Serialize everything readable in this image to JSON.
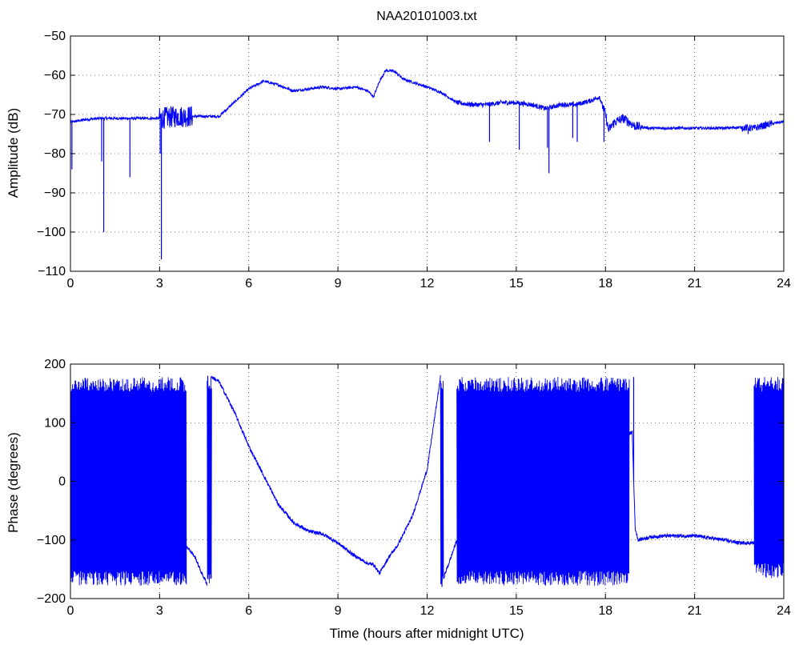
{
  "chart_data": [
    {
      "type": "line",
      "title": "NAA20101003.txt",
      "xlabel": "",
      "ylabel": "Amplitude (dB)",
      "xlim": [
        0,
        24
      ],
      "ylim": [
        -110,
        -50
      ],
      "xticks": [
        0,
        3,
        6,
        9,
        12,
        15,
        18,
        21,
        24
      ],
      "xtick_labels": [
        "0",
        "3",
        "6",
        "9",
        "12",
        "15",
        "18",
        "21",
        "24"
      ],
      "yticks": [
        -50,
        -60,
        -70,
        -80,
        -90,
        -100,
        -110
      ],
      "ytick_labels": [
        "−50",
        "−60",
        "−70",
        "−80",
        "−90",
        "−100",
        "−110"
      ],
      "grid": true,
      "line_color": "#0000ff",
      "series": [
        {
          "baseline": [
            [
              0,
              -72
            ],
            [
              0.5,
              -71.3
            ],
            [
              1,
              -71
            ],
            [
              2,
              -71
            ],
            [
              3,
              -71
            ],
            [
              3.6,
              -70.5
            ],
            [
              4,
              -70.5
            ],
            [
              4.5,
              -70.5
            ],
            [
              5,
              -70.5
            ],
            [
              5.5,
              -67
            ],
            [
              6,
              -63.5
            ],
            [
              6.5,
              -61.5
            ],
            [
              7,
              -62.5
            ],
            [
              7.5,
              -64
            ],
            [
              8,
              -63.5
            ],
            [
              8.5,
              -63
            ],
            [
              9,
              -63.5
            ],
            [
              9.6,
              -63
            ],
            [
              10,
              -64
            ],
            [
              10.2,
              -65.5
            ],
            [
              10.4,
              -61.5
            ],
            [
              10.6,
              -58.8
            ],
            [
              10.9,
              -59
            ],
            [
              11.2,
              -61
            ],
            [
              11.6,
              -62
            ],
            [
              12,
              -63
            ],
            [
              12.5,
              -64.5
            ],
            [
              13,
              -67
            ],
            [
              13.5,
              -67.5
            ],
            [
              14,
              -67.5
            ],
            [
              14.5,
              -67
            ],
            [
              15,
              -67
            ],
            [
              15.5,
              -67.5
            ],
            [
              16,
              -68.5
            ],
            [
              16.5,
              -67.5
            ],
            [
              17,
              -67.5
            ],
            [
              17.5,
              -66.5
            ],
            [
              17.8,
              -65.5
            ],
            [
              18,
              -70
            ],
            [
              18.1,
              -74
            ],
            [
              18.3,
              -72
            ],
            [
              18.6,
              -71
            ],
            [
              19,
              -73
            ],
            [
              19.5,
              -73.5
            ],
            [
              20,
              -73.5
            ],
            [
              21,
              -73.5
            ],
            [
              22,
              -73.5
            ],
            [
              22.5,
              -73.3
            ],
            [
              23,
              -73.5
            ],
            [
              23.5,
              -72.5
            ],
            [
              24,
              -71.8
            ]
          ],
          "noise_segments": [
            {
              "from": 3.0,
              "to": 4.1,
              "amplitude": 2.8
            },
            {
              "from": 17.9,
              "to": 19.2,
              "amplitude": 1.2
            },
            {
              "from": 22.6,
              "to": 23.6,
              "amplitude": 0.9
            },
            {
              "from": 13.0,
              "to": 17.9,
              "amplitude": 0.6
            }
          ],
          "spikes": [
            {
              "x": 0.05,
              "y": -84
            },
            {
              "x": 1.05,
              "y": -82
            },
            {
              "x": 1.12,
              "y": -100
            },
            {
              "x": 2.0,
              "y": -86
            },
            {
              "x": 3.02,
              "y": -80
            },
            {
              "x": 3.06,
              "y": -107
            },
            {
              "x": 14.1,
              "y": -77
            },
            {
              "x": 15.1,
              "y": -79
            },
            {
              "x": 16.05,
              "y": -78.5
            },
            {
              "x": 16.1,
              "y": -85
            },
            {
              "x": 16.9,
              "y": -76
            },
            {
              "x": 17.05,
              "y": -77
            },
            {
              "x": 17.95,
              "y": -77
            },
            {
              "x": 22.8,
              "y": -75
            }
          ]
        }
      ]
    },
    {
      "type": "line",
      "title": "",
      "xlabel": "Time (hours after midnight UTC)",
      "ylabel": "Phase (degrees)",
      "xlim": [
        0,
        24
      ],
      "ylim": [
        -200,
        200
      ],
      "xticks": [
        0,
        3,
        6,
        9,
        12,
        15,
        18,
        21,
        24
      ],
      "xtick_labels": [
        "0",
        "3",
        "6",
        "9",
        "12",
        "15",
        "18",
        "21",
        "24"
      ],
      "yticks": [
        200,
        100,
        0,
        -100,
        -200
      ],
      "ytick_labels": [
        "200",
        "100",
        "0",
        "−100",
        "−200"
      ],
      "grid": true,
      "line_color": "#0000ff",
      "series": [
        {
          "wrap_segments": [
            {
              "from": 0.0,
              "to": 3.9,
              "low": -178,
              "high": 178
            },
            {
              "from": 4.6,
              "to": 4.75,
              "low": -180,
              "high": 180
            },
            {
              "from": 12.45,
              "to": 12.55,
              "low": -180,
              "high": 180
            },
            {
              "from": 13.0,
              "to": 18.8,
              "low": -178,
              "high": 178
            },
            {
              "from": 23.0,
              "to": 24.0,
              "low": -165,
              "high": 178
            }
          ],
          "smooth_segments": [
            [
              [
                3.9,
                -110
              ],
              [
                4.2,
                -130
              ],
              [
                4.4,
                -155
              ],
              [
                4.6,
                -175
              ]
            ],
            [
              [
                4.75,
                178
              ],
              [
                5.0,
                170
              ],
              [
                5.5,
                120
              ],
              [
                6.0,
                60
              ],
              [
                6.5,
                10
              ],
              [
                7.0,
                -40
              ],
              [
                7.5,
                -70
              ],
              [
                8.0,
                -85
              ],
              [
                8.5,
                -90
              ],
              [
                9.0,
                -105
              ],
              [
                9.5,
                -125
              ],
              [
                10.0,
                -140
              ],
              [
                10.2,
                -142
              ],
              [
                10.4,
                -157
              ],
              [
                10.7,
                -130
              ],
              [
                11.0,
                -110
              ],
              [
                11.5,
                -60
              ],
              [
                12.0,
                20
              ],
              [
                12.2,
                90
              ],
              [
                12.45,
                178
              ]
            ],
            [
              [
                12.55,
                -165
              ],
              [
                12.8,
                -130
              ],
              [
                13.0,
                -100
              ]
            ],
            [
              [
                18.8,
                80
              ],
              [
                18.9,
                85
              ],
              [
                19.0,
                -80
              ],
              [
                19.1,
                -100
              ],
              [
                19.5,
                -95
              ],
              [
                20.0,
                -93
              ],
              [
                21.0,
                -93
              ],
              [
                22.0,
                -100
              ],
              [
                22.5,
                -105
              ],
              [
                23.0,
                -105
              ]
            ]
          ],
          "spikes": [
            {
              "x": 18.95,
              "y": 178
            },
            {
              "x": 12.5,
              "y": -180
            },
            {
              "x": 4.62,
              "y": 180
            }
          ]
        }
      ]
    }
  ]
}
